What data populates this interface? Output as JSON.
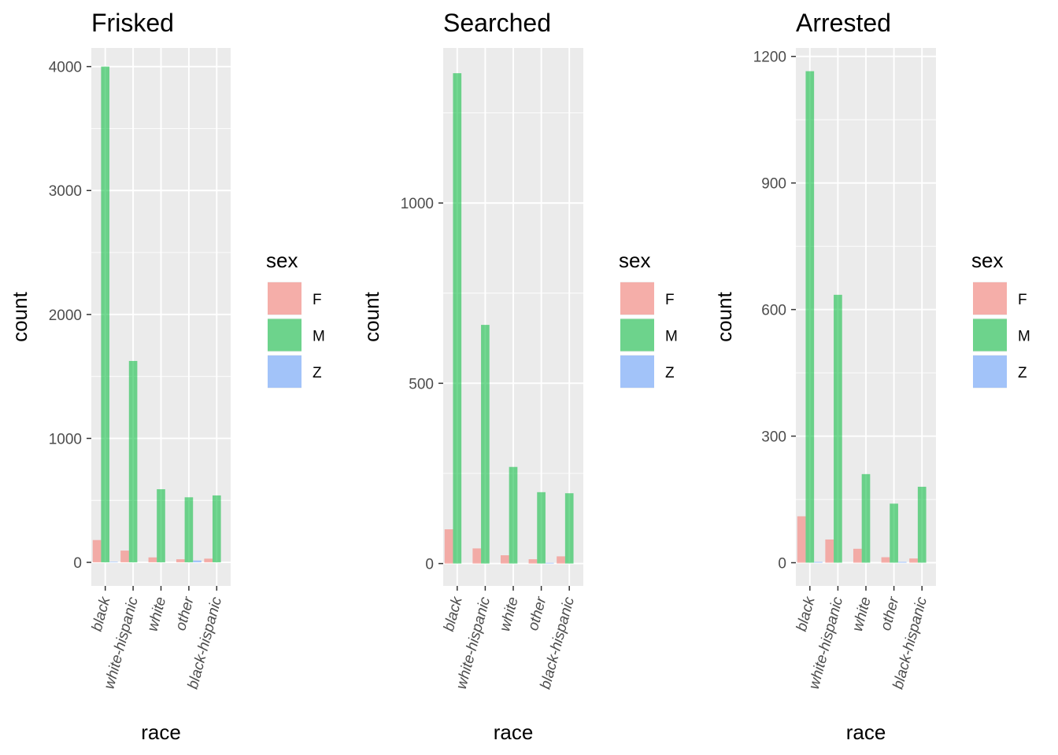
{
  "chart_data": [
    {
      "type": "bar",
      "title": "Frisked",
      "xlabel": "race",
      "ylabel": "count",
      "categories": [
        "black",
        "white-hispanic",
        "white",
        "other",
        "black-hispanic"
      ],
      "ylim": [
        -190,
        4150
      ],
      "yticks": [
        0,
        1000,
        2000,
        3000,
        4000
      ],
      "grid": true,
      "legend": {
        "title": "sex",
        "position": "right"
      },
      "series": [
        {
          "name": "F",
          "values": [
            180,
            95,
            40,
            25,
            30
          ]
        },
        {
          "name": "M",
          "values": [
            4000,
            1625,
            590,
            525,
            540
          ]
        },
        {
          "name": "Z",
          "values": [
            5,
            0,
            0,
            15,
            0
          ]
        }
      ]
    },
    {
      "type": "bar",
      "title": "Searched",
      "xlabel": "race",
      "ylabel": "count",
      "categories": [
        "black",
        "white-hispanic",
        "white",
        "other",
        "black-hispanic"
      ],
      "ylim": [
        -62,
        1430
      ],
      "yticks": [
        0,
        500,
        1000
      ],
      "grid": true,
      "legend": {
        "title": "sex",
        "position": "right"
      },
      "series": [
        {
          "name": "F",
          "values": [
            95,
            42,
            23,
            12,
            20
          ]
        },
        {
          "name": "M",
          "values": [
            1360,
            662,
            268,
            198,
            195
          ]
        },
        {
          "name": "Z",
          "values": [
            0,
            0,
            0,
            2,
            0
          ]
        }
      ]
    },
    {
      "type": "bar",
      "title": "Arrested",
      "xlabel": "race",
      "ylabel": "count",
      "categories": [
        "black",
        "white-hispanic",
        "white",
        "other",
        "black-hispanic"
      ],
      "ylim": [
        -55,
        1220
      ],
      "yticks": [
        0,
        300,
        600,
        900,
        1200
      ],
      "grid": true,
      "legend": {
        "title": "sex",
        "position": "right"
      },
      "series": [
        {
          "name": "F",
          "values": [
            110,
            55,
            33,
            13,
            10
          ]
        },
        {
          "name": "M",
          "values": [
            1165,
            635,
            210,
            140,
            180
          ]
        },
        {
          "name": "Z",
          "values": [
            2,
            0,
            0,
            2,
            0
          ]
        }
      ]
    }
  ],
  "colors": {
    "F": "#F8766D",
    "M": "#00BA38",
    "Z": "#619CFF",
    "panel": "#EBEBEB",
    "grid": "#FFFFFF"
  }
}
